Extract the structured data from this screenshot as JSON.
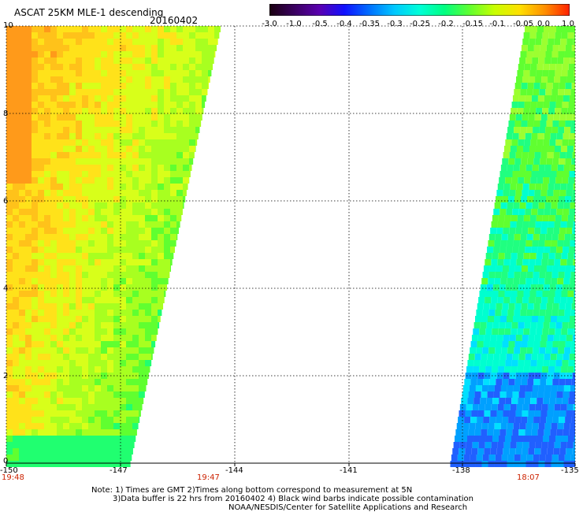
{
  "header": {
    "title": "ASCAT 25KM MLE-1 descending",
    "date": "20160402"
  },
  "colorbar": {
    "labels": [
      "-3.0",
      "-1.0",
      "-0.5",
      "-0.4",
      "-0.35",
      "-0.3",
      "-0.25",
      "-0.2",
      "-0.15",
      "-0.1",
      "-0.05",
      "0.0",
      "1.0"
    ],
    "colors": [
      "#1a0010",
      "#3a0060",
      "#5a00b0",
      "#1010ff",
      "#0070ff",
      "#00c8ff",
      "#00ffd8",
      "#00ff80",
      "#60ff30",
      "#c8ff00",
      "#ffe000",
      "#ff9000",
      "#ff2000"
    ]
  },
  "map": {
    "y_axis": {
      "labels": [
        "10",
        "8",
        "6",
        "4",
        "2",
        "0"
      ],
      "values": [
        10,
        8,
        6,
        4,
        2,
        0
      ]
    },
    "x_axis": {
      "labels": [
        "-150",
        "-147",
        "-144",
        "-141",
        "-138",
        "-135"
      ],
      "values": [
        -150,
        -147,
        -144,
        -141,
        -138,
        -135
      ]
    },
    "pass_times": [
      "19:48",
      "19:47",
      "18:07"
    ],
    "gridlines": "dotted"
  },
  "footer": {
    "note_line1": "Note: 1) Times are GMT 2)Times along bottom correspond to measurement at 5N",
    "note_line2": "3)Data buffer is 22 hrs from 20160402 4) Black wind barbs indicate possible contamination",
    "credit": "NOAA/NESDIS/Center for Satellite Applications and Research"
  }
}
